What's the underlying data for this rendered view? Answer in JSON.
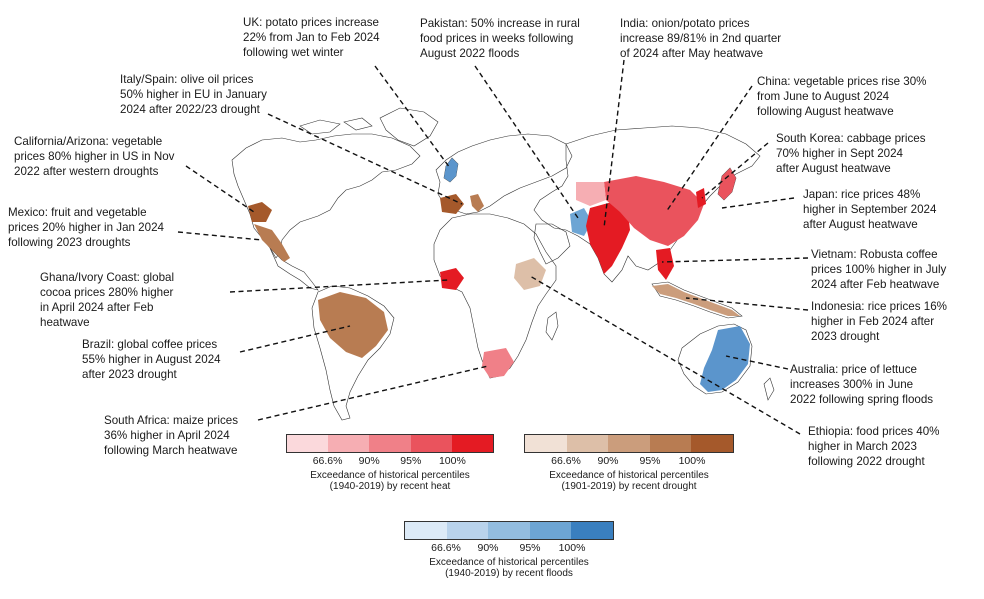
{
  "annotations": [
    {
      "id": "uk",
      "text": "UK: potato prices increase\n22% from Jan to Feb 2024\nfollowing wet winter"
    },
    {
      "id": "pakistan",
      "text": "Pakistan: 50% increase in rural\nfood prices in weeks following\nAugust 2022 floods"
    },
    {
      "id": "india",
      "text": "India: onion/potato prices\nincrease 89/81% in 2nd quarter\nof 2024 after May heatwave"
    },
    {
      "id": "italy",
      "text": "Italy/Spain: olive oil prices\n50% higher in EU in January\n2024 after 2022/23 drought"
    },
    {
      "id": "china",
      "text": "China: vegetable prices rise 30%\nfrom June to August 2024\nfollowing August heatwave"
    },
    {
      "id": "california",
      "text": "California/Arizona: vegetable\nprices 80% higher in US in Nov\n2022 after western droughts"
    },
    {
      "id": "korea",
      "text": "South Korea: cabbage prices\n70% higher in Sept 2024\nafter August heatwave"
    },
    {
      "id": "mexico",
      "text": "Mexico: fruit and vegetable\nprices 20% higher in Jan 2024\nfollowing 2023 droughts"
    },
    {
      "id": "japan",
      "text": "Japan: rice prices 48%\nhigher in September 2024\nafter August heatwave"
    },
    {
      "id": "ghana",
      "text": "Ghana/Ivory Coast: global\ncocoa prices 280% higher\nin April 2024 after Feb\nheatwave"
    },
    {
      "id": "vietnam",
      "text": "Vietnam: Robusta coffee\nprices 100% higher in July\n2024 after Feb heatwave"
    },
    {
      "id": "brazil",
      "text": "Brazil: global coffee prices\n55% higher in August 2024\nafter 2023 drought"
    },
    {
      "id": "indonesia",
      "text": "Indonesia: rice prices 16%\nhigher in Feb 2024 after\n2023 drought"
    },
    {
      "id": "australia",
      "text": "Australia: price of lettuce\nincreases 300% in June\n2022 following spring floods"
    },
    {
      "id": "southafrica",
      "text": "South Africa: maize prices\n36% higher in April 2024\nfollowing March heatwave"
    },
    {
      "id": "ethiopia",
      "text": "Ethiopia: food prices 40%\nhigher in March 2023\nfollowing 2022 drought"
    }
  ],
  "legends": {
    "heat": {
      "colors": [
        "#fbd9dc",
        "#f6aeb3",
        "#f08088",
        "#ea535d",
        "#e41b23"
      ],
      "ticks": [
        "66.6%",
        "90%",
        "95%",
        "100%"
      ],
      "caption": "Exceedance of historical percentiles\n(1940-2019) by recent heat"
    },
    "drought": {
      "colors": [
        "#f1e1d6",
        "#ddbfa8",
        "#cb9d7c",
        "#b87c52",
        "#a5592b"
      ],
      "ticks": [
        "66.6%",
        "90%",
        "95%",
        "100%"
      ],
      "caption": "Exceedance of historical percentiles\n(1901-2019) by recent drought"
    },
    "flood": {
      "colors": [
        "#dceaf7",
        "#b9d3ec",
        "#93bde0",
        "#6da5d4",
        "#3a7fbf"
      ],
      "ticks": [
        "66.6%",
        "90%",
        "95%",
        "100%"
      ],
      "caption": "Exceedance of historical percentiles\n(1940-2019) by recent floods"
    }
  }
}
